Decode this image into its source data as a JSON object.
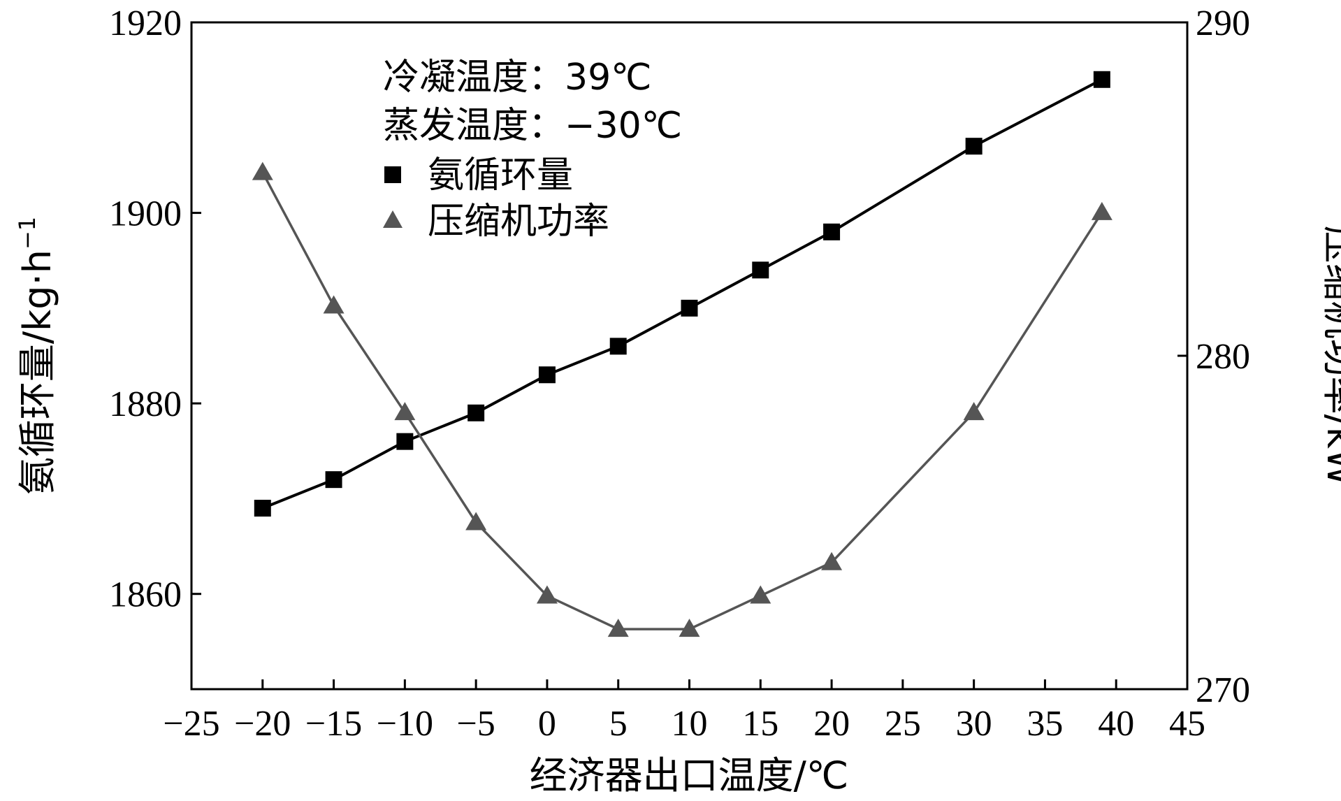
{
  "chart_data": {
    "type": "line",
    "xlabel": "经济器出口温度/℃",
    "ylabel_left": "氨循环量/kg·h",
    "ylabel_left_sup": "−1",
    "ylabel_right": "压缩机功率/kW",
    "xlim": [
      -25,
      45
    ],
    "ylim_left": [
      1850,
      1920
    ],
    "ylim_right": [
      270,
      290
    ],
    "x_ticks": [
      "−25",
      "−20",
      "−15",
      "−10",
      "−5",
      "0",
      "5",
      "10",
      "15",
      "20",
      "25",
      "30",
      "35",
      "40",
      "45"
    ],
    "y_left_ticks": [
      "1860",
      "1880",
      "1900",
      "1920"
    ],
    "y_right_ticks": [
      "270",
      "280",
      "290"
    ],
    "annotations": [
      "冷凝温度：39℃",
      "蒸发温度：−30℃"
    ],
    "series": [
      {
        "name": "氨循环量",
        "axis": "left",
        "marker": "square",
        "color": "#000000",
        "x": [
          -20,
          -15,
          -10,
          -5,
          0,
          5,
          10,
          15,
          20,
          30,
          39
        ],
        "y": [
          1869,
          1872,
          1876,
          1879,
          1883,
          1886,
          1890,
          1894,
          1898,
          1907,
          1914
        ]
      },
      {
        "name": "压缩机功率",
        "axis": "right",
        "marker": "triangle",
        "color": "#555555",
        "x": [
          -20,
          -15,
          -10,
          -5,
          0,
          5,
          10,
          15,
          20,
          30,
          39
        ],
        "y": [
          285.5,
          281.5,
          278.3,
          275.0,
          272.8,
          271.8,
          271.8,
          272.8,
          273.8,
          278.3,
          284.3
        ]
      }
    ],
    "grid": false,
    "legend_position": "top-left"
  }
}
